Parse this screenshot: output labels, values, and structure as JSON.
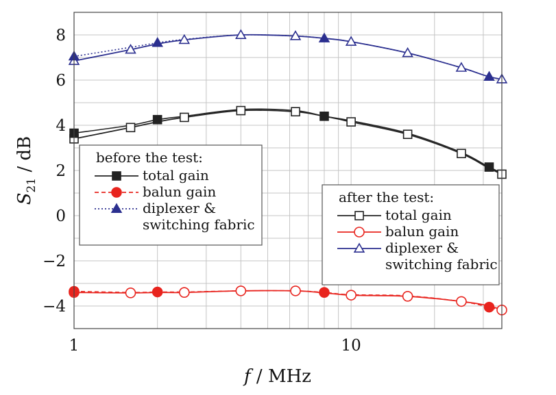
{
  "chart_data": {
    "type": "line",
    "xscale": "log",
    "xlim": [
      1,
      35
    ],
    "ylim": [
      -5,
      9
    ],
    "grid": true,
    "x_ticks": [
      {
        "value": 1,
        "label": "1"
      },
      {
        "value": 10,
        "label": "10"
      }
    ],
    "y_ticks": [
      {
        "value": 8,
        "label": "8"
      },
      {
        "value": 6,
        "label": "6"
      },
      {
        "value": 4,
        "label": "4"
      },
      {
        "value": 2,
        "label": "2"
      },
      {
        "value": 0,
        "label": "0"
      },
      {
        "value": -2,
        "label": "−2"
      },
      {
        "value": -4,
        "label": "−4"
      }
    ],
    "xlabel": {
      "var": "f",
      "unit": " / MHz"
    },
    "ylabel": {
      "var": "S",
      "sub": "21",
      "unit": " / dB"
    },
    "series": [
      {
        "name": "total gain",
        "group": "before",
        "color": "#222222",
        "marker": "square",
        "filled": true,
        "dash": "solid",
        "x": [
          1,
          1.6,
          2,
          2.5,
          4,
          6.3,
          8,
          10,
          16,
          25,
          31.5,
          40
        ],
        "y": [
          3.65,
          4.0,
          4.25,
          4.4,
          4.7,
          4.65,
          4.4,
          4.2,
          3.65,
          2.8,
          2.15,
          1.55
        ],
        "marker_x": [
          1,
          2,
          8,
          31.5
        ]
      },
      {
        "name": "balun gain",
        "group": "before",
        "color": "#e8241e",
        "marker": "circle",
        "filled": true,
        "dash": "6,4",
        "x": [
          1,
          1.6,
          2,
          2.5,
          4,
          6.3,
          8,
          10,
          16,
          25,
          31.5,
          40
        ],
        "y": [
          -3.35,
          -3.4,
          -3.38,
          -3.38,
          -3.33,
          -3.33,
          -3.4,
          -3.5,
          -3.55,
          -3.8,
          -4.05,
          -4.4
        ],
        "marker_x": [
          1,
          2,
          8,
          31.5
        ]
      },
      {
        "name": "diplexer & switching fabric",
        "group": "before",
        "color": "#2b2f8f",
        "marker": "triangle",
        "filled": true,
        "dash": "2,3",
        "x": [
          1,
          1.6,
          2,
          2.5,
          4,
          6.3,
          8,
          10,
          16,
          25,
          31.5,
          40
        ],
        "y": [
          7.05,
          7.45,
          7.65,
          7.8,
          8.0,
          7.95,
          7.85,
          7.7,
          7.2,
          6.55,
          6.15,
          5.9
        ],
        "marker_x": [
          1,
          2,
          8,
          31.5
        ]
      },
      {
        "name": "total gain",
        "group": "after",
        "color": "#222222",
        "marker": "square",
        "filled": false,
        "dash": "solid",
        "x": [
          1,
          1.6,
          2,
          2.5,
          4,
          6.3,
          8,
          10,
          16,
          25,
          31.5,
          40
        ],
        "y": [
          3.4,
          3.9,
          4.15,
          4.35,
          4.65,
          4.6,
          4.4,
          4.15,
          3.6,
          2.75,
          2.1,
          1.5
        ],
        "marker_x": [
          1,
          1.6,
          2.5,
          4,
          6.3,
          10,
          16,
          25,
          35
        ]
      },
      {
        "name": "balun gain",
        "group": "after",
        "color": "#e8241e",
        "marker": "circle",
        "filled": false,
        "dash": "solid",
        "x": [
          1,
          1.6,
          2,
          2.5,
          4,
          6.3,
          8,
          10,
          16,
          25,
          31.5,
          40
        ],
        "y": [
          -3.4,
          -3.42,
          -3.4,
          -3.4,
          -3.33,
          -3.33,
          -3.42,
          -3.52,
          -3.57,
          -3.8,
          -4.0,
          -4.4
        ],
        "marker_x": [
          1,
          1.6,
          2.5,
          4,
          6.3,
          10,
          16,
          25,
          35
        ]
      },
      {
        "name": "diplexer & switching fabric",
        "group": "after",
        "color": "#2b2f8f",
        "marker": "triangle",
        "filled": false,
        "dash": "solid",
        "x": [
          1,
          1.6,
          2,
          2.5,
          4,
          6.3,
          8,
          10,
          16,
          25,
          31.5,
          40
        ],
        "y": [
          6.85,
          7.35,
          7.6,
          7.78,
          8.0,
          7.95,
          7.85,
          7.7,
          7.2,
          6.55,
          6.15,
          5.9
        ],
        "marker_x": [
          1,
          1.6,
          2.5,
          4,
          6.3,
          10,
          16,
          25,
          35
        ]
      }
    ],
    "legends": [
      {
        "title": "before the test:",
        "placement": "center-left",
        "entries": [
          {
            "series": 0,
            "lines": [
              "total gain"
            ]
          },
          {
            "series": 1,
            "lines": [
              "balun gain"
            ]
          },
          {
            "series": 2,
            "lines": [
              "diplexer &",
              "switching fabric"
            ]
          }
        ]
      },
      {
        "title": "after the test:",
        "placement": "bottom-right",
        "entries": [
          {
            "series": 3,
            "lines": [
              "total gain"
            ]
          },
          {
            "series": 4,
            "lines": [
              "balun gain"
            ]
          },
          {
            "series": 5,
            "lines": [
              "diplexer &",
              "switching fabric"
            ]
          }
        ]
      }
    ]
  }
}
